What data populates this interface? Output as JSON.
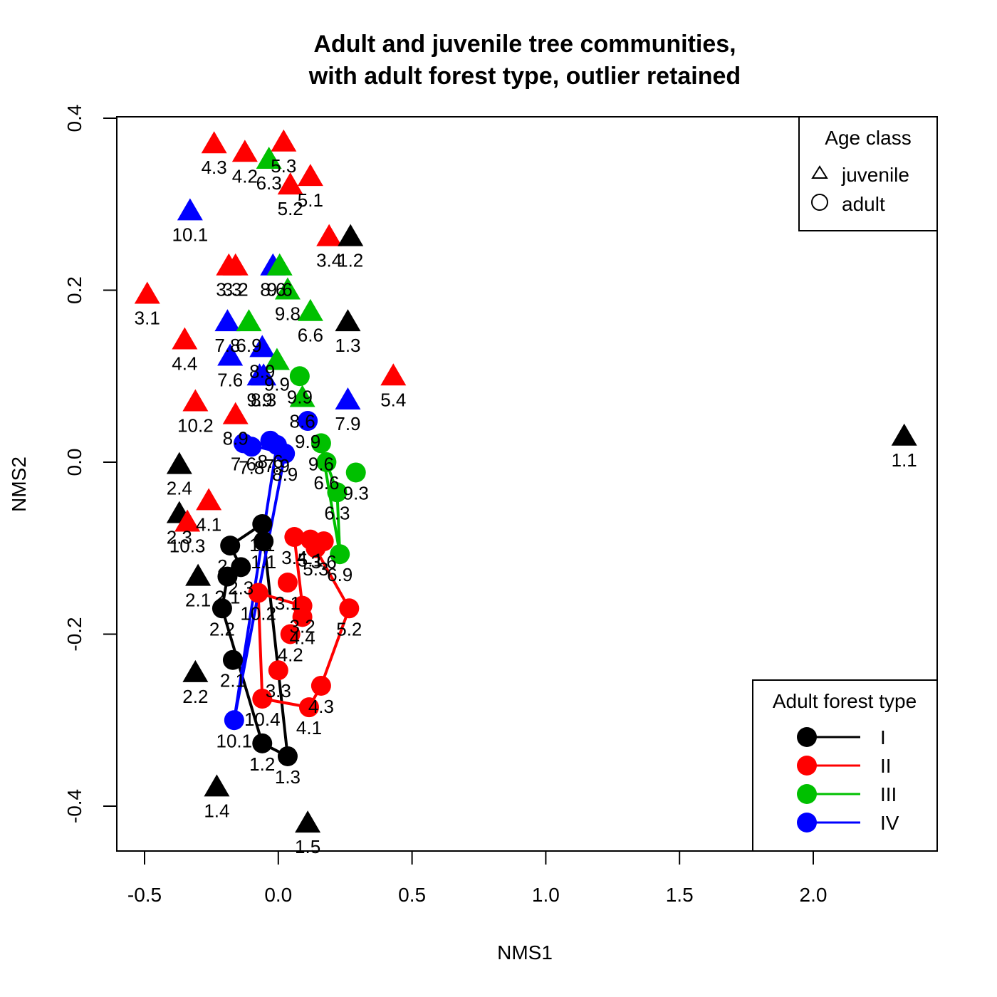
{
  "chart_data": {
    "type": "scatter",
    "title": "Adult and juvenile tree communities,",
    "subtitle": "with adult forest type, outlier retained",
    "xlabel": "NMS1",
    "ylabel": "NMS2",
    "xlim": [
      -0.6,
      2.45
    ],
    "ylim": [
      -0.45,
      0.4
    ],
    "x_ticks": [
      {
        "value": -0.5,
        "label": "-0.5"
      },
      {
        "value": 0.0,
        "label": "0.0"
      },
      {
        "value": 0.5,
        "label": "0.5"
      },
      {
        "value": 1.0,
        "label": "1.0"
      },
      {
        "value": 1.5,
        "label": "1.5"
      },
      {
        "value": 2.0,
        "label": "2.0"
      }
    ],
    "y_ticks": [
      {
        "value": -0.4,
        "label": "-0.4"
      },
      {
        "value": -0.2,
        "label": "-0.2"
      },
      {
        "value": 0.0,
        "label": "0.0"
      },
      {
        "value": 0.2,
        "label": "0.2"
      },
      {
        "value": 0.4,
        "label": "0.4"
      }
    ],
    "grid": false,
    "age_legend": {
      "title": "Age class",
      "placement": "top-right",
      "entries": [
        {
          "symbol": "triangle",
          "label": "juvenile"
        },
        {
          "symbol": "circle",
          "label": "adult"
        }
      ]
    },
    "type_legend": {
      "title": "Adult forest type",
      "placement": "bottom-right",
      "entries": [
        {
          "type": "I",
          "label": "I",
          "color": "#000000"
        },
        {
          "type": "II",
          "label": "II",
          "color": "#ff0000"
        },
        {
          "type": "III",
          "label": "III",
          "color": "#00c000"
        },
        {
          "type": "IV",
          "label": "IV",
          "color": "#0000ff"
        }
      ]
    },
    "colors": {
      "I": "#000000",
      "II": "#ff0000",
      "III": "#00c000",
      "IV": "#0000ff"
    },
    "hulls": {
      "I": [
        "2.3",
        "2.1",
        "2.2",
        "1.2",
        "1.3",
        "1.1",
        "2.4"
      ],
      "II": [
        "3.4",
        "5.1",
        "5.2",
        "4.3",
        "4.1",
        "10.4",
        "10.2",
        "3.2"
      ],
      "III": [
        "6.6",
        "6.3",
        "6.9",
        "9.6"
      ],
      "IV": [
        "7.6",
        "8.9",
        "10.1",
        "7.9"
      ]
    },
    "juveniles": [
      {
        "label": "4.3",
        "type": "II",
        "x": -0.24,
        "y": 0.37
      },
      {
        "label": "4.2",
        "type": "II",
        "x": -0.125,
        "y": 0.36
      },
      {
        "label": "5.3",
        "type": "II",
        "x": 0.02,
        "y": 0.372
      },
      {
        "label": "6.3",
        "type": "III",
        "x": -0.035,
        "y": 0.352
      },
      {
        "label": "5.2",
        "type": "II",
        "x": 0.045,
        "y": 0.322
      },
      {
        "label": "5.1",
        "type": "II",
        "x": 0.12,
        "y": 0.332
      },
      {
        "label": "10.1",
        "type": "IV",
        "x": -0.33,
        "y": 0.292
      },
      {
        "label": "3.4",
        "type": "II",
        "x": 0.19,
        "y": 0.262
      },
      {
        "label": "1.2",
        "type": "I",
        "x": 0.27,
        "y": 0.262
      },
      {
        "label": "3.3",
        "type": "II",
        "x": -0.185,
        "y": 0.228
      },
      {
        "label": "3.2",
        "type": "II",
        "x": -0.16,
        "y": 0.228
      },
      {
        "label": "8.6",
        "type": "IV",
        "x": -0.02,
        "y": 0.228
      },
      {
        "label": "9.6",
        "type": "III",
        "x": 0.005,
        "y": 0.228
      },
      {
        "label": "9.8",
        "type": "III",
        "x": 0.035,
        "y": 0.2
      },
      {
        "label": "3.1",
        "type": "II",
        "x": -0.49,
        "y": 0.195
      },
      {
        "label": "6.6",
        "type": "III",
        "x": 0.12,
        "y": 0.175
      },
      {
        "label": "1.3",
        "type": "I",
        "x": 0.26,
        "y": 0.163
      },
      {
        "label": "7.8",
        "type": "IV",
        "x": -0.19,
        "y": 0.163
      },
      {
        "label": "6.9",
        "type": "III",
        "x": -0.11,
        "y": 0.163
      },
      {
        "label": "4.4",
        "type": "II",
        "x": -0.35,
        "y": 0.142
      },
      {
        "label": "8.9",
        "type": "IV",
        "x": -0.06,
        "y": 0.133
      },
      {
        "label": "7.6",
        "type": "IV",
        "x": -0.18,
        "y": 0.123
      },
      {
        "label": "9.9",
        "type": "III",
        "x": -0.005,
        "y": 0.118
      },
      {
        "label": "9.9",
        "type": "IV",
        "x": -0.07,
        "y": 0.1
      },
      {
        "label": "8.3",
        "type": "IV",
        "x": -0.055,
        "y": 0.1
      },
      {
        "label": "5.4",
        "type": "II",
        "x": 0.43,
        "y": 0.1
      },
      {
        "label": "10.2",
        "type": "II",
        "x": -0.31,
        "y": 0.07
      },
      {
        "label": "8.9",
        "type": "II",
        "x": -0.16,
        "y": 0.055
      },
      {
        "label": "7.9",
        "type": "IV",
        "x": 0.26,
        "y": 0.072
      },
      {
        "label": "8.6",
        "type": "III",
        "x": 0.09,
        "y": 0.075
      },
      {
        "label": "1.1",
        "type": "I",
        "x": 2.34,
        "y": 0.03
      },
      {
        "label": "2.4",
        "type": "I",
        "x": -0.37,
        "y": -0.003
      },
      {
        "label": "4.1",
        "type": "II",
        "x": -0.26,
        "y": -0.045
      },
      {
        "label": "2.3",
        "type": "I",
        "x": -0.37,
        "y": -0.06
      },
      {
        "label": "10.3",
        "type": "II",
        "x": -0.34,
        "y": -0.07
      },
      {
        "label": "2.1",
        "type": "I",
        "x": -0.3,
        "y": -0.133
      },
      {
        "label": "2.2",
        "type": "I",
        "x": -0.31,
        "y": -0.245
      },
      {
        "label": "1.4",
        "type": "I",
        "x": -0.23,
        "y": -0.378
      },
      {
        "label": "1.5",
        "type": "I",
        "x": 0.11,
        "y": -0.42
      }
    ],
    "adults": [
      {
        "label": "7.6",
        "type": "IV",
        "x": -0.13,
        "y": 0.022
      },
      {
        "label": "7.8",
        "type": "IV",
        "x": -0.1,
        "y": 0.018
      },
      {
        "label": "8.6",
        "type": "IV",
        "x": -0.03,
        "y": 0.025
      },
      {
        "label": "7.9",
        "type": "IV",
        "x": -0.005,
        "y": 0.02
      },
      {
        "label": "8.9",
        "type": "IV",
        "x": 0.025,
        "y": 0.01
      },
      {
        "label": "9.9",
        "type": "IV",
        "x": 0.11,
        "y": 0.048
      },
      {
        "label": "10.1",
        "type": "IV",
        "x": -0.165,
        "y": -0.3
      },
      {
        "label": "9.9",
        "type": "III",
        "x": 0.08,
        "y": 0.1
      },
      {
        "label": "9.6",
        "type": "III",
        "x": 0.16,
        "y": 0.022
      },
      {
        "label": "6.6",
        "type": "III",
        "x": 0.18,
        "y": 0.0
      },
      {
        "label": "9.3",
        "type": "III",
        "x": 0.29,
        "y": -0.012
      },
      {
        "label": "6.3",
        "type": "III",
        "x": 0.22,
        "y": -0.035
      },
      {
        "label": "6.9",
        "type": "III",
        "x": 0.23,
        "y": -0.107
      },
      {
        "label": "3.4",
        "type": "II",
        "x": 0.06,
        "y": -0.087
      },
      {
        "label": "5.1",
        "type": "II",
        "x": 0.12,
        "y": -0.09
      },
      {
        "label": "5.3",
        "type": "II",
        "x": 0.14,
        "y": -0.1
      },
      {
        "label": "3.6",
        "type": "II",
        "x": 0.17,
        "y": -0.092
      },
      {
        "label": "3.1",
        "type": "II",
        "x": 0.035,
        "y": -0.14
      },
      {
        "label": "3.2",
        "type": "II",
        "x": 0.09,
        "y": -0.167
      },
      {
        "label": "5.2",
        "type": "II",
        "x": 0.265,
        "y": -0.17
      },
      {
        "label": "4.4",
        "type": "II",
        "x": 0.09,
        "y": -0.18
      },
      {
        "label": "4.2",
        "type": "II",
        "x": 0.045,
        "y": -0.2
      },
      {
        "label": "3.3",
        "type": "II",
        "x": 0.0,
        "y": -0.242
      },
      {
        "label": "4.3",
        "type": "II",
        "x": 0.16,
        "y": -0.26
      },
      {
        "label": "4.1",
        "type": "II",
        "x": 0.115,
        "y": -0.285
      },
      {
        "label": "10.4",
        "type": "II",
        "x": -0.06,
        "y": -0.275
      },
      {
        "label": "10.2",
        "type": "II",
        "x": -0.075,
        "y": -0.152
      },
      {
        "label": "1.1",
        "type": "I",
        "x": -0.06,
        "y": -0.072
      },
      {
        "label": "1.1",
        "type": "I",
        "x": -0.055,
        "y": -0.092
      },
      {
        "label": "2.4",
        "type": "I",
        "x": -0.18,
        "y": -0.097
      },
      {
        "label": "2.3",
        "type": "I",
        "x": -0.14,
        "y": -0.122
      },
      {
        "label": "2.1",
        "type": "I",
        "x": -0.19,
        "y": -0.133
      },
      {
        "label": "2.2",
        "type": "I",
        "x": -0.21,
        "y": -0.17
      },
      {
        "label": "2.1",
        "type": "I",
        "x": -0.17,
        "y": -0.23
      },
      {
        "label": "1.2",
        "type": "I",
        "x": -0.06,
        "y": -0.327
      },
      {
        "label": "1.3",
        "type": "I",
        "x": 0.035,
        "y": -0.342
      }
    ]
  }
}
